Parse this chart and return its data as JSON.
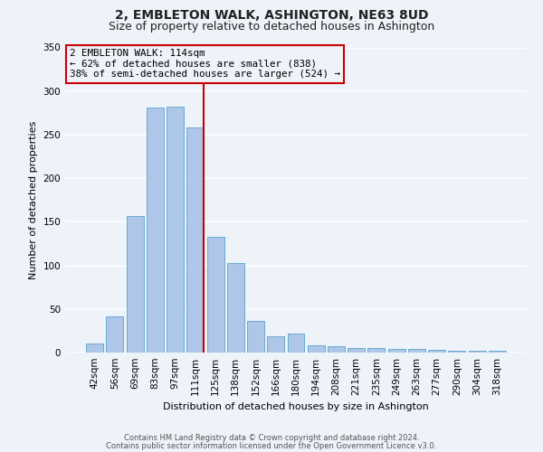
{
  "title": "2, EMBLETON WALK, ASHINGTON, NE63 8UD",
  "subtitle": "Size of property relative to detached houses in Ashington",
  "xlabel": "Distribution of detached houses by size in Ashington",
  "ylabel": "Number of detached properties",
  "bar_labels": [
    "42sqm",
    "56sqm",
    "69sqm",
    "83sqm",
    "97sqm",
    "111sqm",
    "125sqm",
    "138sqm",
    "152sqm",
    "166sqm",
    "180sqm",
    "194sqm",
    "208sqm",
    "221sqm",
    "235sqm",
    "249sqm",
    "263sqm",
    "277sqm",
    "290sqm",
    "304sqm",
    "318sqm"
  ],
  "bar_heights": [
    10,
    41,
    157,
    281,
    282,
    258,
    133,
    103,
    36,
    19,
    22,
    8,
    7,
    5,
    5,
    4,
    4,
    3,
    2,
    2,
    2
  ],
  "bar_color": "#aec6e8",
  "bar_edge_color": "#6aaad4",
  "vline_color": "#cc0000",
  "vline_x_index": 5,
  "box_edge_color": "#cc0000",
  "background_color": "#eef2f9",
  "grid_color": "#ffffff",
  "annotation_box_text": "2 EMBLETON WALK: 114sqm\n← 62% of detached houses are smaller (838)\n38% of semi-detached houses are larger (524) →",
  "footer_line1": "Contains HM Land Registry data © Crown copyright and database right 2024.",
  "footer_line2": "Contains public sector information licensed under the Open Government Licence v3.0.",
  "ylim": [
    0,
    350
  ],
  "yticks": [
    0,
    50,
    100,
    150,
    200,
    250,
    300,
    350
  ],
  "title_fontsize": 10,
  "subtitle_fontsize": 9,
  "ylabel_fontsize": 8,
  "xlabel_fontsize": 8,
  "tick_fontsize": 7.5,
  "ann_fontsize": 7.8,
  "footer_fontsize": 6
}
